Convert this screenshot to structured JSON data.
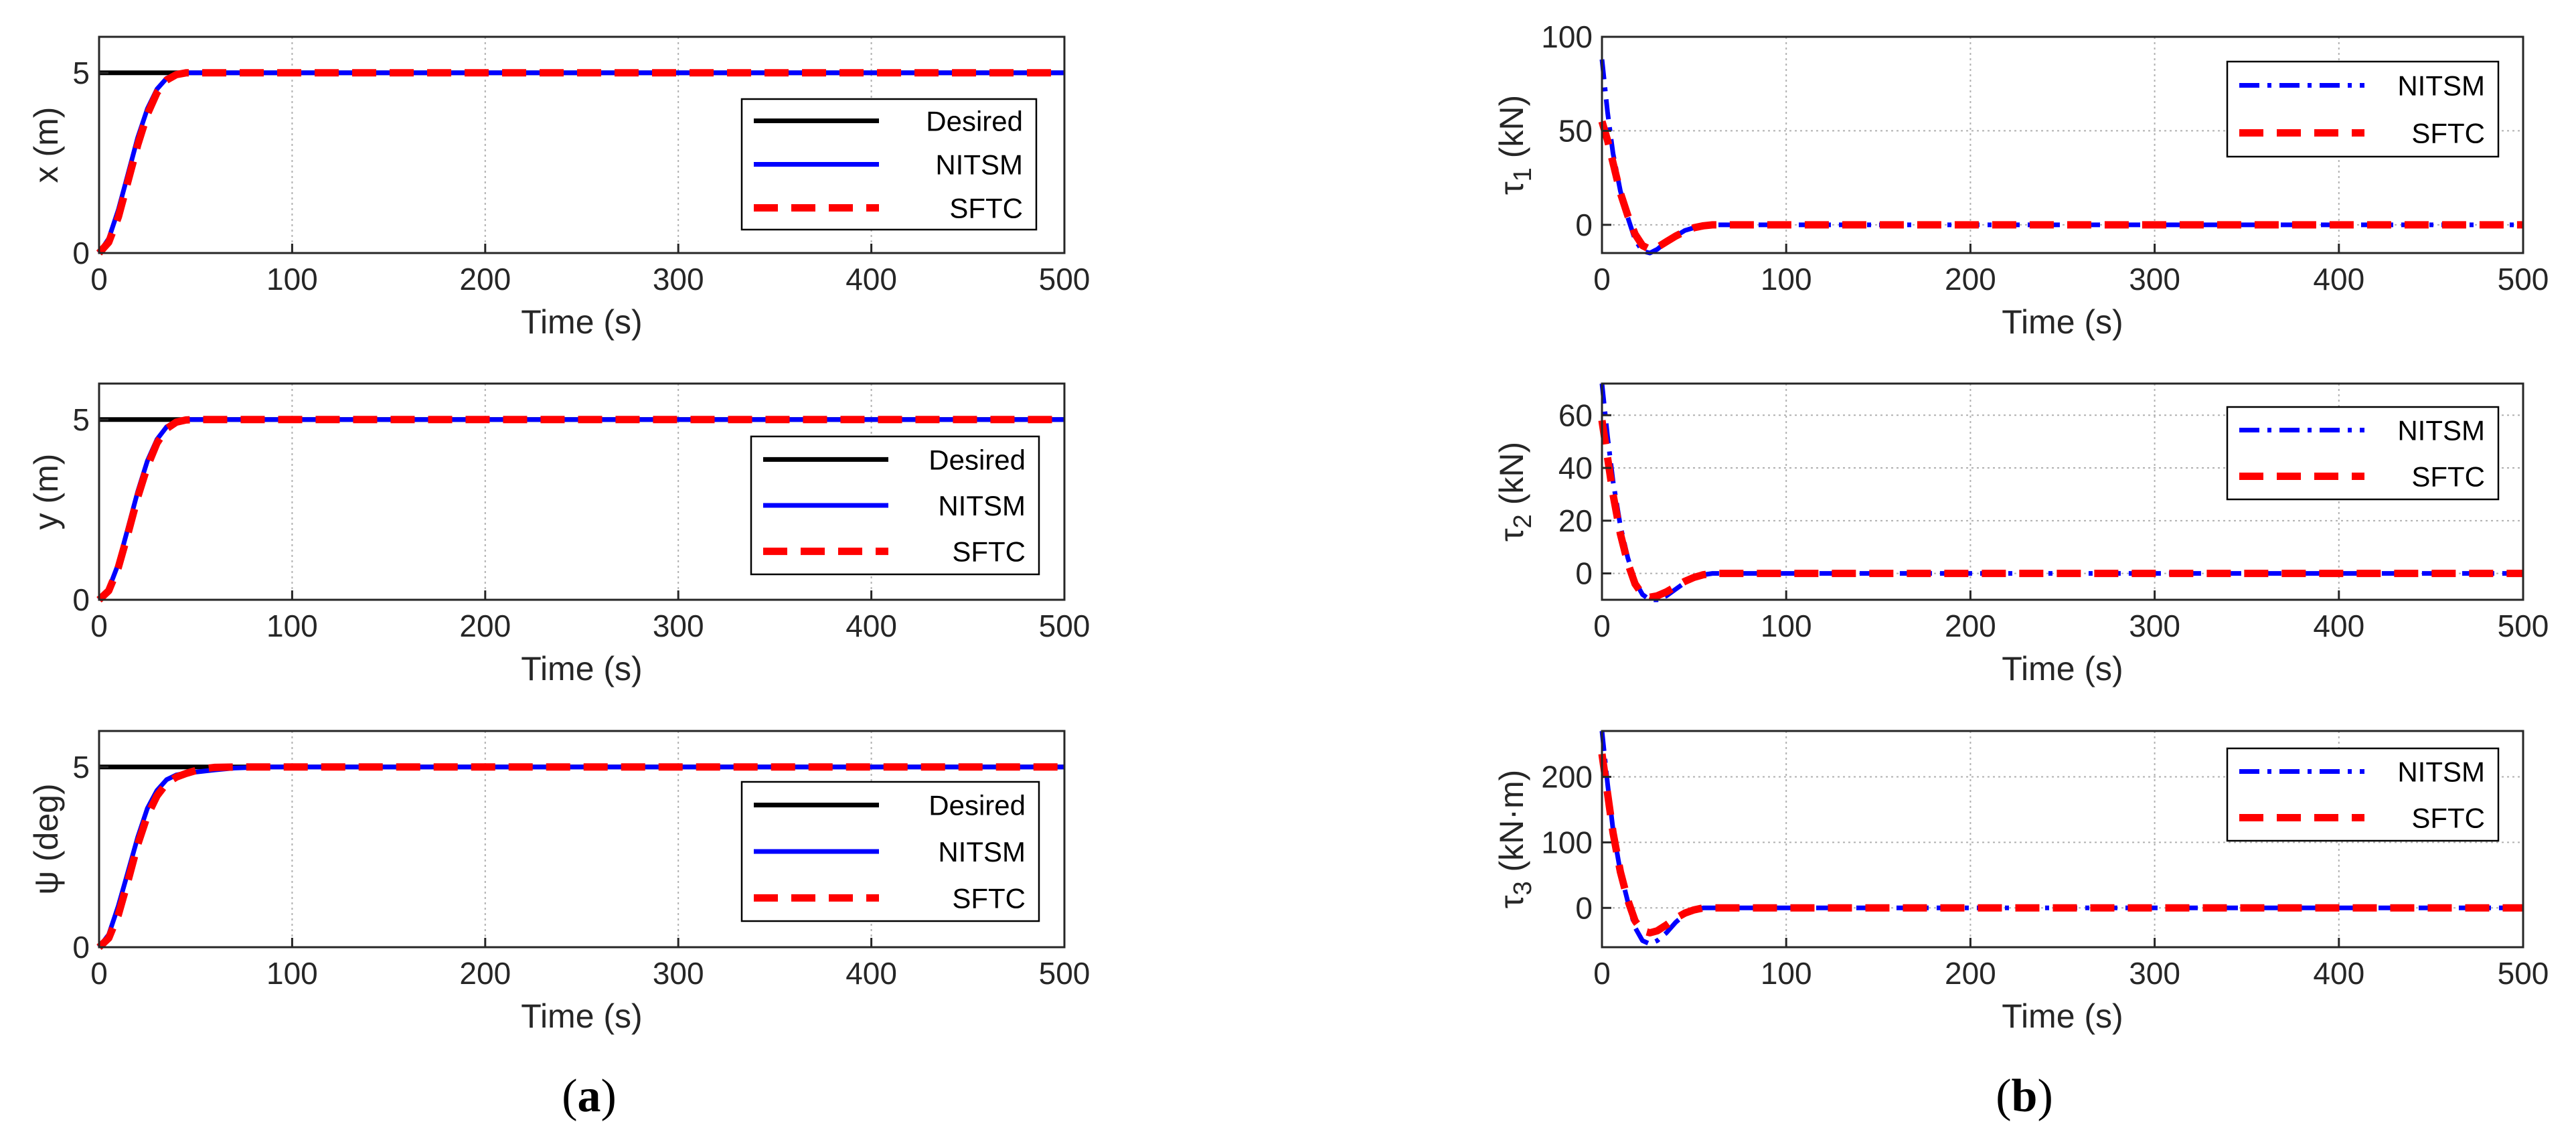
{
  "figure": {
    "panel_a_caption": {
      "open": "(",
      "letter": "a",
      "close": ")"
    },
    "panel_b_caption": {
      "open": "(",
      "letter": "b",
      "close": ")"
    }
  },
  "colors": {
    "desired": "#000000",
    "nitsm": "#0000ff",
    "sftc": "#ff0000",
    "axis": "#262626",
    "grid": "#b0b0b0"
  },
  "chart_data": [
    {
      "id": "a1",
      "type": "line",
      "legend_style": "solid",
      "xlabel": "Time (s)",
      "ylabel": "x (m)",
      "xlim": [
        0,
        500
      ],
      "ylim": [
        0,
        6
      ],
      "xticks": [
        0,
        100,
        200,
        300,
        400,
        500
      ],
      "yticks": [
        0,
        5
      ],
      "legend_position": "right-center",
      "series": [
        {
          "name": "Desired",
          "style": "solid",
          "color": "#000000",
          "x": [
            0,
            500
          ],
          "y": [
            5,
            5
          ]
        },
        {
          "name": "NITSM",
          "style": "solid",
          "color": "#0000ff",
          "x": [
            0,
            5,
            10,
            15,
            20,
            25,
            30,
            35,
            40,
            45,
            50,
            60,
            80,
            500
          ],
          "y": [
            0,
            0.4,
            1.2,
            2.2,
            3.2,
            4.0,
            4.55,
            4.85,
            4.96,
            5.0,
            5.0,
            5.0,
            5.0,
            5.0
          ]
        },
        {
          "name": "SFTC",
          "style": "dashed",
          "color": "#ff0000",
          "x": [
            0,
            5,
            10,
            15,
            20,
            25,
            30,
            35,
            40,
            45,
            50,
            60,
            80,
            500
          ],
          "y": [
            0,
            0.3,
            1.0,
            2.0,
            3.0,
            3.85,
            4.45,
            4.8,
            4.95,
            5.0,
            5.0,
            5.0,
            5.0,
            5.0
          ]
        }
      ]
    },
    {
      "id": "a2",
      "type": "line",
      "legend_style": "solid",
      "xlabel": "Time (s)",
      "ylabel": "y (m)",
      "xlim": [
        0,
        500
      ],
      "ylim": [
        0,
        6
      ],
      "xticks": [
        0,
        100,
        200,
        300,
        400,
        500
      ],
      "yticks": [
        0,
        5
      ],
      "legend_position": "right-center",
      "series": [
        {
          "name": "Desired",
          "style": "solid",
          "color": "#000000",
          "x": [
            0,
            500
          ],
          "y": [
            5,
            5
          ]
        },
        {
          "name": "NITSM",
          "style": "solid",
          "color": "#0000ff",
          "x": [
            0,
            5,
            10,
            15,
            20,
            25,
            30,
            35,
            40,
            45,
            50,
            55,
            60,
            80,
            500
          ],
          "y": [
            0,
            0.3,
            1.0,
            2.0,
            3.0,
            3.85,
            4.45,
            4.8,
            4.95,
            5.0,
            5.0,
            5.0,
            5.0,
            5.0,
            5.0
          ]
        },
        {
          "name": "SFTC",
          "style": "dashed",
          "color": "#ff0000",
          "x": [
            0,
            5,
            10,
            15,
            20,
            25,
            30,
            35,
            40,
            45,
            50,
            55,
            60,
            80,
            500
          ],
          "y": [
            0,
            0.25,
            0.9,
            1.85,
            2.85,
            3.7,
            4.35,
            4.75,
            4.93,
            4.99,
            5.0,
            5.0,
            5.0,
            5.0,
            5.0
          ]
        }
      ]
    },
    {
      "id": "a3",
      "type": "line",
      "legend_style": "solid",
      "xlabel": "Time (s)",
      "ylabel": "ψ (deg)",
      "xlim": [
        0,
        500
      ],
      "ylim": [
        0,
        6
      ],
      "xticks": [
        0,
        100,
        200,
        300,
        400,
        500
      ],
      "yticks": [
        0,
        5
      ],
      "legend_position": "right-center",
      "series": [
        {
          "name": "Desired",
          "style": "solid",
          "color": "#000000",
          "x": [
            0,
            500
          ],
          "y": [
            5,
            5
          ]
        },
        {
          "name": "NITSM",
          "style": "solid",
          "color": "#0000ff",
          "x": [
            0,
            5,
            10,
            15,
            20,
            25,
            30,
            35,
            40,
            45,
            50,
            60,
            70,
            85,
            100,
            500
          ],
          "y": [
            0,
            0.35,
            1.15,
            2.1,
            3.05,
            3.85,
            4.35,
            4.65,
            4.78,
            4.83,
            4.86,
            4.92,
            4.97,
            5.0,
            5.0,
            5.0
          ]
        },
        {
          "name": "SFTC",
          "style": "dashed",
          "color": "#ff0000",
          "x": [
            0,
            5,
            10,
            15,
            20,
            25,
            30,
            35,
            40,
            45,
            50,
            55,
            60,
            70,
            80,
            500
          ],
          "y": [
            0,
            0.25,
            0.9,
            1.85,
            2.85,
            3.65,
            4.2,
            4.55,
            4.72,
            4.82,
            4.9,
            4.96,
            4.99,
            5.0,
            5.0,
            5.0
          ]
        }
      ]
    },
    {
      "id": "b1",
      "type": "line",
      "legend_style": "dashdot",
      "xlabel": "Time (s)",
      "ylabel_sym": "τ",
      "ylabel_sub": "1",
      "ylabel_unit": " (kN)",
      "xlim": [
        0,
        500
      ],
      "ylim": [
        -15,
        100
      ],
      "xticks": [
        0,
        100,
        200,
        300,
        400,
        500
      ],
      "yticks": [
        0,
        50,
        100
      ],
      "legend_position": "top-right",
      "series": [
        {
          "name": "NITSM",
          "style": "dashdot",
          "color": "#0000ff",
          "x": [
            0,
            3,
            6,
            10,
            14,
            18,
            22,
            26,
            30,
            35,
            40,
            45,
            50,
            55,
            60,
            65,
            70,
            80,
            500
          ],
          "y": [
            88,
            60,
            38,
            18,
            4,
            -8,
            -14,
            -15,
            -13,
            -9,
            -6,
            -3,
            -1.5,
            -0.5,
            0,
            0,
            0,
            0,
            0
          ]
        },
        {
          "name": "SFTC",
          "style": "dashed",
          "color": "#ff0000",
          "x": [
            0,
            3,
            6,
            10,
            14,
            18,
            22,
            26,
            30,
            35,
            40,
            45,
            50,
            55,
            60,
            65,
            70,
            80,
            500
          ],
          "y": [
            55,
            45,
            33,
            17,
            5,
            -5,
            -11,
            -13,
            -12,
            -9,
            -6,
            -3.5,
            -1.5,
            -0.5,
            0,
            0,
            0,
            0,
            0
          ]
        }
      ]
    },
    {
      "id": "b2",
      "type": "line",
      "legend_style": "dashdot",
      "xlabel": "Time (s)",
      "ylabel_sym": "τ",
      "ylabel_sub": "2",
      "ylabel_unit": " (kN)",
      "xlim": [
        0,
        500
      ],
      "ylim": [
        -10,
        72
      ],
      "xticks": [
        0,
        100,
        200,
        300,
        400,
        500
      ],
      "yticks": [
        0,
        20,
        40,
        60
      ],
      "legend_position": "top-right",
      "series": [
        {
          "name": "NITSM",
          "style": "dashdot",
          "color": "#0000ff",
          "x": [
            0,
            3,
            6,
            10,
            14,
            18,
            22,
            26,
            30,
            35,
            40,
            45,
            50,
            55,
            60,
            65,
            70,
            80,
            500
          ],
          "y": [
            72,
            52,
            35,
            18,
            6,
            -3,
            -8,
            -10,
            -10,
            -8.5,
            -6,
            -3.5,
            -1.5,
            -0.5,
            0,
            0,
            0,
            0,
            0
          ]
        },
        {
          "name": "SFTC",
          "style": "dashed",
          "color": "#ff0000",
          "x": [
            0,
            3,
            6,
            10,
            14,
            18,
            22,
            26,
            30,
            35,
            40,
            45,
            50,
            55,
            60,
            65,
            70,
            80,
            500
          ],
          "y": [
            58,
            44,
            30,
            15,
            4,
            -4,
            -8,
            -9,
            -8.5,
            -7,
            -5,
            -3,
            -1.5,
            -0.5,
            0,
            0,
            0,
            0,
            0
          ]
        }
      ]
    },
    {
      "id": "b3",
      "type": "line",
      "legend_style": "dashdot",
      "xlabel": "Time (s)",
      "ylabel_sym": "τ",
      "ylabel_sub": "3",
      "ylabel_unit": " (kN·m)",
      "xlim": [
        0,
        500
      ],
      "ylim": [
        -60,
        270
      ],
      "xticks": [
        0,
        100,
        200,
        300,
        400,
        500
      ],
      "yticks": [
        0,
        100,
        200
      ],
      "legend_position": "top-right",
      "series": [
        {
          "name": "NITSM",
          "style": "dashdot",
          "color": "#0000ff",
          "x": [
            0,
            3,
            6,
            10,
            14,
            18,
            22,
            26,
            30,
            35,
            40,
            45,
            50,
            55,
            60,
            70,
            500
          ],
          "y": [
            270,
            190,
            120,
            55,
            10,
            -30,
            -50,
            -55,
            -50,
            -38,
            -22,
            -10,
            -3,
            0,
            0,
            0,
            0
          ]
        },
        {
          "name": "SFTC",
          "style": "dashed",
          "color": "#ff0000",
          "x": [
            0,
            3,
            6,
            10,
            14,
            18,
            22,
            26,
            30,
            35,
            40,
            45,
            50,
            55,
            60,
            70,
            500
          ],
          "y": [
            235,
            175,
            115,
            55,
            12,
            -20,
            -35,
            -38,
            -35,
            -26,
            -16,
            -8,
            -3,
            0,
            0,
            0,
            0
          ]
        }
      ]
    }
  ]
}
